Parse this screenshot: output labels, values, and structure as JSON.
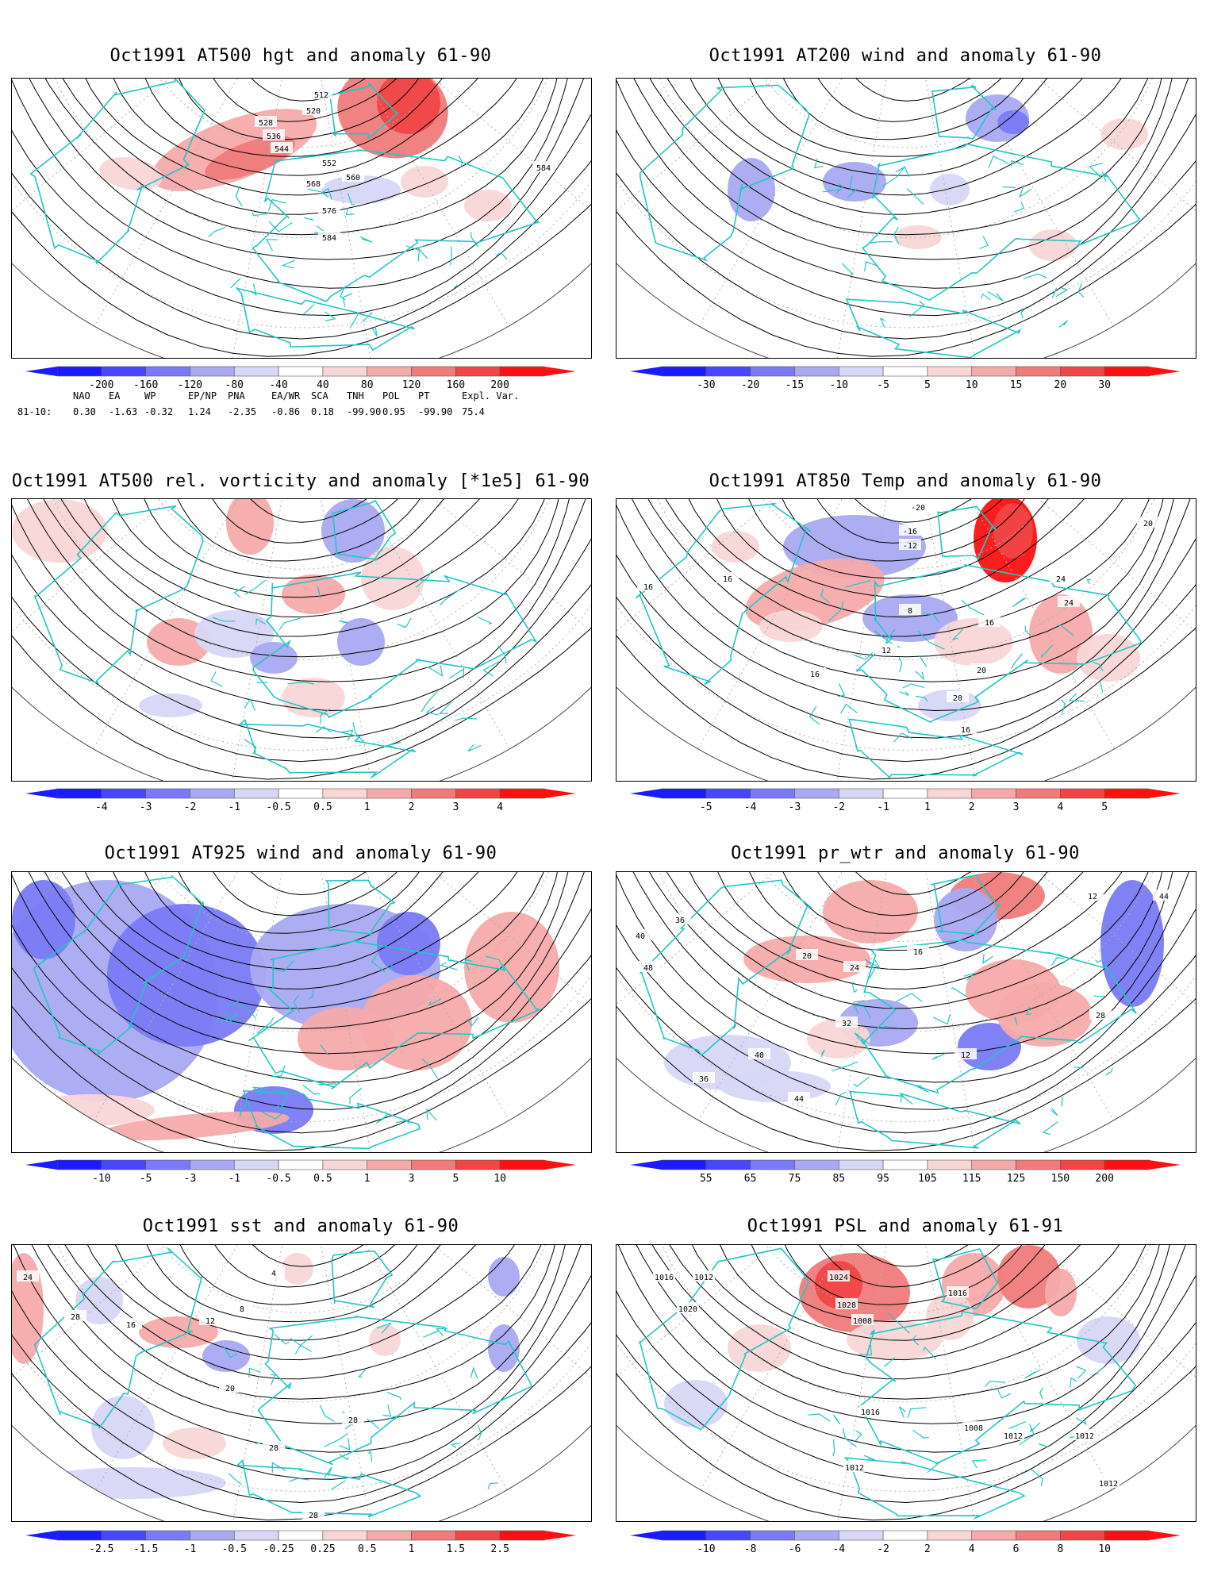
{
  "panels": [
    {
      "id": "p1",
      "title": "Oct1991 AT500 hgt and anomaly 61-90",
      "colorbar": [
        "-200",
        "-160",
        "-120",
        "-80",
        "-40",
        "40",
        "80",
        "120",
        "160",
        "200"
      ]
    },
    {
      "id": "p2",
      "title": "Oct1991 AT200 wind and anomaly 61-90",
      "colorbar": [
        "-30",
        "-20",
        "-15",
        "-10",
        "-5",
        "5",
        "10",
        "15",
        "20",
        "30"
      ]
    },
    {
      "id": "p3",
      "title": "Oct1991 AT500 rel. vorticity and anomaly [*1e5] 61-90",
      "colorbar": [
        "-4",
        "-3",
        "-2",
        "-1",
        "-0.5",
        "0.5",
        "1",
        "2",
        "3",
        "4"
      ]
    },
    {
      "id": "p4",
      "title": "Oct1991 AT850 Temp and anomaly 61-90",
      "colorbar": [
        "-5",
        "-4",
        "-3",
        "-2",
        "-1",
        "1",
        "2",
        "3",
        "4",
        "5"
      ]
    },
    {
      "id": "p5",
      "title": "Oct1991 AT925 wind and anomaly 61-90",
      "colorbar": [
        "-10",
        "-5",
        "-3",
        "-1",
        "-0.5",
        "0.5",
        "1",
        "3",
        "5",
        "10"
      ]
    },
    {
      "id": "p6",
      "title": "Oct1991 pr_wtr and anomaly 61-90",
      "colorbar": [
        "55",
        "65",
        "75",
        "85",
        "95",
        "105",
        "115",
        "125",
        "150",
        "200"
      ]
    },
    {
      "id": "p7",
      "title": "Oct1991 sst and anomaly 61-90",
      "colorbar": [
        "-2.5",
        "-1.5",
        "-1",
        "-0.5",
        "-0.25",
        "0.25",
        "0.5",
        "1",
        "1.5",
        "2.5"
      ]
    },
    {
      "id": "p8",
      "title": "Oct1991 PSL and anomaly 61-91",
      "colorbar": [
        "-10",
        "-8",
        "-6",
        "-4",
        "-2",
        "2",
        "4",
        "6",
        "8",
        "10"
      ]
    }
  ],
  "contour_labels": {
    "p1": [
      "512",
      "520",
      "528",
      "536",
      "544",
      "552",
      "560",
      "568",
      "576",
      "584",
      "584"
    ],
    "p4": [
      "-20",
      "-16",
      "-12",
      "16",
      "16",
      "20",
      "24",
      "16",
      "12",
      "16",
      "24",
      "20",
      "20",
      "16",
      "8"
    ],
    "p6": [
      "44",
      "40",
      "36",
      "48",
      "12",
      "20",
      "24",
      "32",
      "40",
      "44",
      "36",
      "16",
      "12",
      "28"
    ],
    "p7": [
      "24",
      "28",
      "16",
      "12",
      "8",
      "4",
      "20",
      "28",
      "28",
      "28"
    ],
    "p8": [
      "1016",
      "1012",
      "1020",
      "1024",
      "1028",
      "1008",
      "1016",
      "1012",
      "1016",
      "1012",
      "1012",
      "1008",
      "1012"
    ]
  },
  "teleconnection": {
    "headers": [
      "NAO",
      "EA",
      "WP",
      "EP/NP",
      "PNA",
      "EA/WR",
      "SCA",
      "TNH",
      "POL",
      "PT",
      "Expl. Var."
    ],
    "row_label": "81-10:",
    "values": [
      "0.30",
      "-1.63",
      "-0.32",
      "1.24",
      "-2.35",
      "-0.86",
      "0.18",
      "-99.90",
      "0.95",
      "-99.90",
      "75.4"
    ]
  },
  "colors": {
    "blue_scale": [
      "#1b1bff",
      "#4747ff",
      "#7a7af5",
      "#a9a9f2",
      "#d7d7f7"
    ],
    "red_scale": [
      "#f8d6d6",
      "#f5aaaa",
      "#f07b7b",
      "#f04646",
      "#ff1010"
    ],
    "coastline": "#21c6c6",
    "contour": "#000000",
    "grid": "#b0b0b0"
  }
}
